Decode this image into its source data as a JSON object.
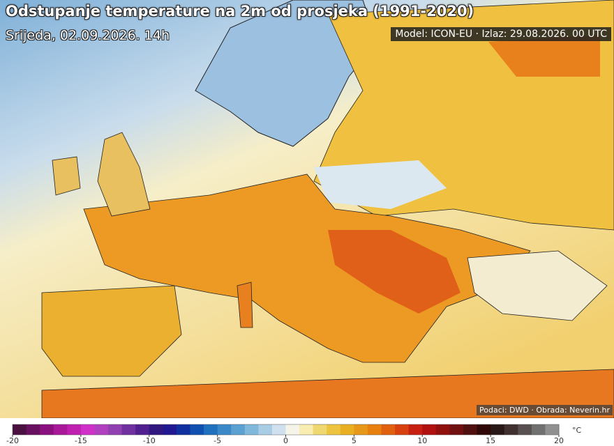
{
  "header": {
    "title": "Odstupanje temperature na 2m od prosjeka (1991-2020)",
    "subtitle": "Srijeda, 02.09.2026. 14h",
    "model_info": "Model: ICON-EU · Izlaz: 29.08.2026. 00 UTC"
  },
  "footer": {
    "credit": "Podaci: DWD · Obrada: Neverin.hr"
  },
  "colorbar": {
    "range": [
      -20,
      20
    ],
    "ticks": [
      -20,
      -15,
      -10,
      -5,
      0,
      5,
      10,
      15,
      20
    ],
    "unit": "°C",
    "colors": [
      "#4a1040",
      "#6a1060",
      "#8a1080",
      "#a81898",
      "#c020b0",
      "#d030c8",
      "#b040c0",
      "#9040b0",
      "#7030a0",
      "#502090",
      "#301880",
      "#201890",
      "#1030a0",
      "#1050b0",
      "#2070c0",
      "#3a88c8",
      "#5aa0d0",
      "#80b8dc",
      "#a8cce4",
      "#d0e0ee",
      "#f4f4e8",
      "#f8ecb0",
      "#f0d870",
      "#ecc440",
      "#e8b020",
      "#e89818",
      "#e88010",
      "#e06010",
      "#d84010",
      "#c82010",
      "#b01010",
      "#901010",
      "#701010",
      "#501010",
      "#300808",
      "#281818",
      "#403030",
      "#585050",
      "#707070",
      "#909090"
    ]
  }
}
